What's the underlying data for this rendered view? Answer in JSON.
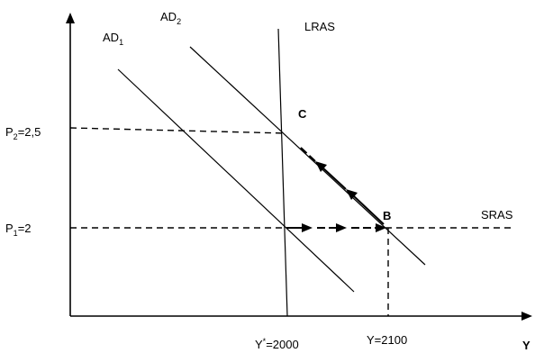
{
  "labels": {
    "ad1": "AD",
    "ad1_sub": "1",
    "ad2": "AD",
    "ad2_sub": "2",
    "lras": "LRAS",
    "sras": "SRAS",
    "point_c": "C",
    "point_b": "B",
    "p2_main": "P",
    "p2_sub": "2",
    "p2_value": "=2,5",
    "p1_main": "P",
    "p1_sub": "1",
    "p1_value": "=2",
    "ystar_main": "Y",
    "ystar_sup": "*",
    "ystar_value": "=2000",
    "y2100": "Y=2100",
    "y_axis_label": "Y"
  }
}
